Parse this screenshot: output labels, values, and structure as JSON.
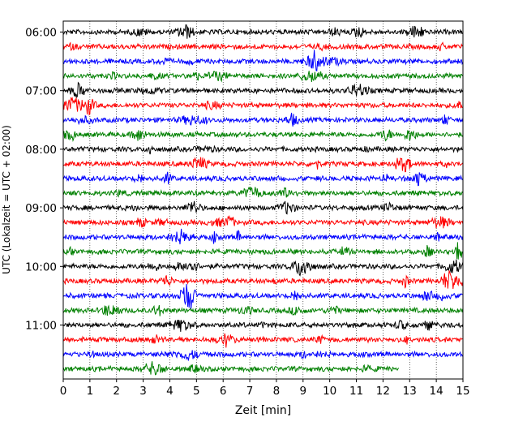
{
  "chart_data": {
    "type": "line",
    "title": "",
    "xlabel": "Zeit  [min]",
    "ylabel": "UTC (Lokalzeit = UTC + 02:00)",
    "xlim": [
      0,
      15
    ],
    "x_ticks": [
      0,
      1,
      2,
      3,
      4,
      5,
      6,
      7,
      8,
      9,
      10,
      11,
      12,
      13,
      14,
      15
    ],
    "y_tick_labels": [
      "06:00",
      "07:00",
      "08:00",
      "09:00",
      "10:00",
      "11:00"
    ],
    "vertical_grid": "dotted",
    "trace_colors": [
      "#000000",
      "#ff0000",
      "#0000ff",
      "#008000"
    ],
    "traces": [
      {
        "start": "06:00",
        "end_min": 15
      },
      {
        "start": "06:15",
        "end_min": 15
      },
      {
        "start": "06:30",
        "end_min": 15
      },
      {
        "start": "06:45",
        "end_min": 15
      },
      {
        "start": "07:00",
        "end_min": 15
      },
      {
        "start": "07:15",
        "end_min": 15
      },
      {
        "start": "07:30",
        "end_min": 15
      },
      {
        "start": "07:45",
        "end_min": 15
      },
      {
        "start": "08:00",
        "end_min": 15
      },
      {
        "start": "08:15",
        "end_min": 15
      },
      {
        "start": "08:30",
        "end_min": 15
      },
      {
        "start": "08:45",
        "end_min": 15
      },
      {
        "start": "09:00",
        "end_min": 15
      },
      {
        "start": "09:15",
        "end_min": 15
      },
      {
        "start": "09:30",
        "end_min": 15
      },
      {
        "start": "09:45",
        "end_min": 15
      },
      {
        "start": "10:00",
        "end_min": 15
      },
      {
        "start": "10:15",
        "end_min": 15
      },
      {
        "start": "10:30",
        "end_min": 15
      },
      {
        "start": "10:45",
        "end_min": 15
      },
      {
        "start": "11:00",
        "end_min": 15
      },
      {
        "start": "11:15",
        "end_min": 15
      },
      {
        "start": "11:30",
        "end_min": 15
      },
      {
        "start": "11:45",
        "end_min": 12.6
      }
    ]
  }
}
